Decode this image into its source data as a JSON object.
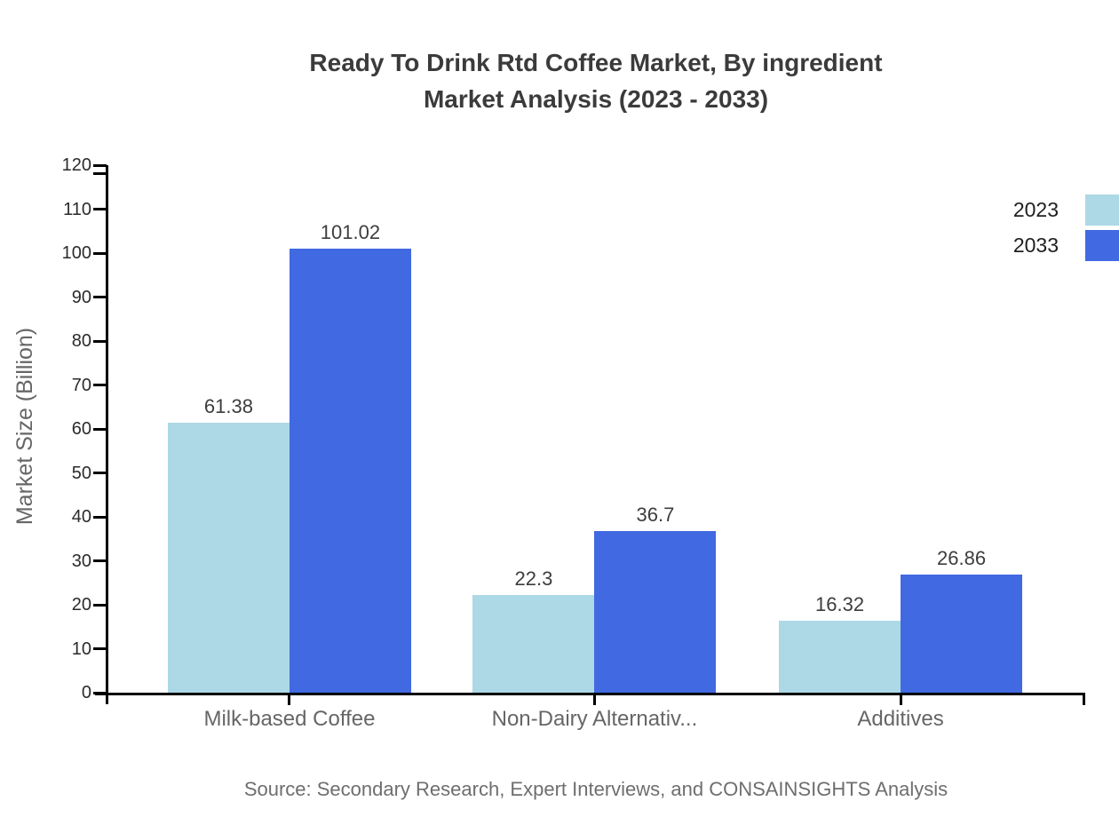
{
  "header": {
    "title_line1": "Ready To Drink Rtd Coffee Market, By ingredient",
    "title_line2": "Market Analysis (2023 - 2033)"
  },
  "chart_data": {
    "type": "bar",
    "title": "Ready To Drink Rtd Coffee Market, By ingredient Market Analysis (2023 - 2033)",
    "xlabel": "",
    "ylabel": "Market Size (Billion)",
    "categories": [
      "Milk-based Coffee",
      "Non-Dairy Alternativ...",
      "Additives"
    ],
    "series": [
      {
        "name": "2023",
        "color": "#add8e6",
        "values": [
          61.38,
          22.3,
          16.32
        ],
        "value_labels": [
          "61.38",
          "22.3",
          "16.32"
        ]
      },
      {
        "name": "2033",
        "color": "#4169e1",
        "values": [
          101.02,
          36.7,
          26.86
        ],
        "value_labels": [
          "101.02",
          "36.7",
          "26.86"
        ]
      }
    ],
    "ylim": [
      0,
      120
    ],
    "ytick_step": 10,
    "ytick_labels": [
      "0",
      "10",
      "20",
      "30",
      "40",
      "50",
      "60",
      "70",
      "80",
      "90",
      "100",
      "110",
      "120"
    ],
    "grid": false,
    "legend_position": "top-right"
  },
  "legend": {
    "items": [
      {
        "label": "2023",
        "color": "#add8e6"
      },
      {
        "label": "2033",
        "color": "#4169e1"
      }
    ]
  },
  "footer": {
    "source": "Source: Secondary Research, Expert Interviews, and CONSAINSIGHTS Analysis"
  },
  "colors": {
    "series_2023": "#add8e6",
    "series_2033": "#4169e1",
    "title_text": "#3b3b3b",
    "axis": "#000000",
    "muted_text": "#666666"
  }
}
